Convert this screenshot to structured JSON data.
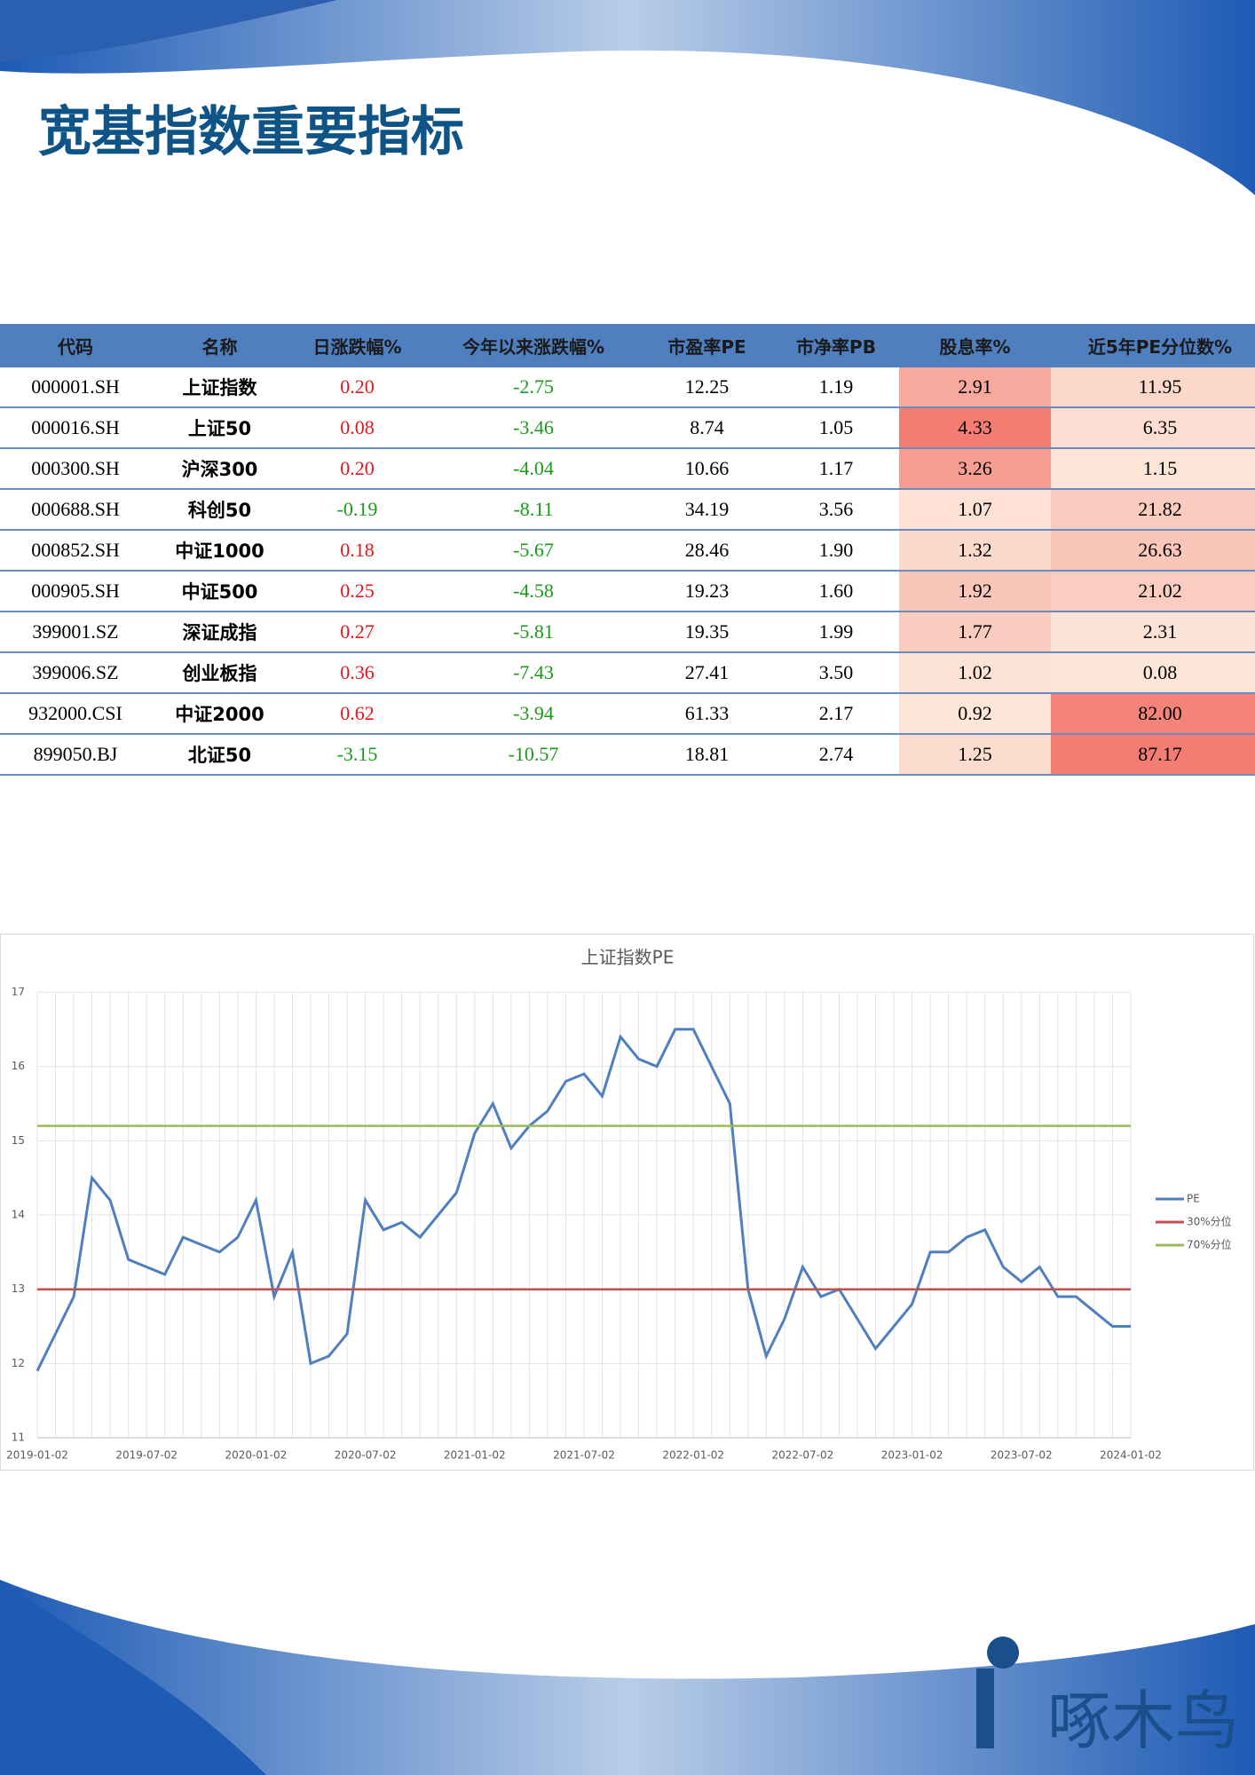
{
  "header": {
    "title": "宽基指数重要指标"
  },
  "table": {
    "columns": [
      "代码",
      "名称",
      "日涨跌幅%",
      "今年以来涨跌幅%",
      "市盈率PE",
      "市净率PB",
      "股息率%",
      "近5年PE分位数%"
    ],
    "rows": [
      [
        "000001.SH",
        "上证指数",
        "0.20",
        "-2.75",
        "12.25",
        "1.19",
        "2.91",
        "11.95"
      ],
      [
        "000016.SH",
        "上证50",
        "0.08",
        "-3.46",
        "8.74",
        "1.05",
        "4.33",
        "6.35"
      ],
      [
        "000300.SH",
        "沪深300",
        "0.20",
        "-4.04",
        "10.66",
        "1.17",
        "3.26",
        "1.15"
      ],
      [
        "000688.SH",
        "科创50",
        "-0.19",
        "-8.11",
        "34.19",
        "3.56",
        "1.07",
        "21.82"
      ],
      [
        "000852.SH",
        "中证1000",
        "0.18",
        "-5.67",
        "28.46",
        "1.90",
        "1.32",
        "26.63"
      ],
      [
        "000905.SH",
        "中证500",
        "0.25",
        "-4.58",
        "19.23",
        "1.60",
        "1.92",
        "21.02"
      ],
      [
        "399001.SZ",
        "深证成指",
        "0.27",
        "-5.81",
        "19.35",
        "1.99",
        "1.77",
        "2.31"
      ],
      [
        "399006.SZ",
        "创业板指",
        "0.36",
        "-7.43",
        "27.41",
        "3.50",
        "1.02",
        "0.08"
      ],
      [
        "932000.CSI",
        "中证2000",
        "0.62",
        "-3.94",
        "61.33",
        "2.17",
        "0.92",
        "82.00"
      ],
      [
        "899050.BJ",
        "北证50",
        "-3.15",
        "-10.57",
        "18.81",
        "2.74",
        "1.25",
        "87.17"
      ]
    ]
  },
  "chart_data": {
    "type": "line",
    "title": "上证指数PE",
    "categories": [
      "2019-01-02",
      null,
      null,
      null,
      null,
      null,
      "2019-07-02",
      null,
      null,
      null,
      null,
      null,
      "2020-01-02",
      null,
      null,
      null,
      null,
      null,
      "2020-07-02",
      null,
      null,
      null,
      null,
      null,
      "2021-01-02",
      null,
      null,
      null,
      null,
      null,
      "2021-07-02",
      null,
      null,
      null,
      null,
      null,
      "2022-01-02",
      null,
      null,
      null,
      null,
      null,
      "2022-07-02",
      null,
      null,
      null,
      null,
      null,
      "2023-01-02",
      null,
      null,
      null,
      null,
      null,
      "2023-07-02",
      null,
      null,
      null,
      null,
      null,
      "2024-01-02"
    ],
    "series": [
      {
        "name": "PE",
        "color": "#4f7fbf",
        "values": [
          11.9,
          12.4,
          12.9,
          14.5,
          14.2,
          13.4,
          13.3,
          13.2,
          13.7,
          13.6,
          13.5,
          13.7,
          14.2,
          12.9,
          13.5,
          12.0,
          12.1,
          12.4,
          14.2,
          13.8,
          13.9,
          13.7,
          14.0,
          14.3,
          15.1,
          15.5,
          14.9,
          15.2,
          15.4,
          15.8,
          15.9,
          15.6,
          16.4,
          16.1,
          16.0,
          16.5,
          16.5,
          16.0,
          15.5,
          13.0,
          12.1,
          12.6,
          13.3,
          12.9,
          13.0,
          12.6,
          12.2,
          12.5,
          12.8,
          13.5,
          13.5,
          13.7,
          13.8,
          13.3,
          13.1,
          13.3,
          12.9,
          12.9,
          12.7,
          12.5,
          12.5
        ]
      },
      {
        "name": "30%分位",
        "color": "#c0504d",
        "values": [
          13,
          13,
          13,
          13,
          13,
          13,
          13,
          13,
          13,
          13,
          13,
          13,
          13,
          13,
          13,
          13,
          13,
          13,
          13,
          13,
          13,
          13,
          13,
          13,
          13,
          13,
          13,
          13,
          13,
          13,
          13,
          13,
          13,
          13,
          13,
          13,
          13,
          13,
          13,
          13,
          13,
          13,
          13,
          13,
          13,
          13,
          13,
          13,
          13,
          13,
          13,
          13,
          13,
          13,
          13,
          13,
          13,
          13,
          13,
          13,
          13
        ]
      },
      {
        "name": "70%分位",
        "color": "#9bbb59",
        "values": [
          15.2,
          15.2,
          15.2,
          15.2,
          15.2,
          15.2,
          15.2,
          15.2,
          15.2,
          15.2,
          15.2,
          15.2,
          15.2,
          15.2,
          15.2,
          15.2,
          15.2,
          15.2,
          15.2,
          15.2,
          15.2,
          15.2,
          15.2,
          15.2,
          15.2,
          15.2,
          15.2,
          15.2,
          15.2,
          15.2,
          15.2,
          15.2,
          15.2,
          15.2,
          15.2,
          15.2,
          15.2,
          15.2,
          15.2,
          15.2,
          15.2,
          15.2,
          15.2,
          15.2,
          15.2,
          15.2,
          15.2,
          15.2,
          15.2,
          15.2,
          15.2,
          15.2,
          15.2,
          15.2,
          15.2,
          15.2,
          15.2,
          15.2,
          15.2,
          15.2,
          15.2
        ]
      }
    ],
    "ylim": [
      11,
      17
    ],
    "yticks": [
      11,
      12,
      13,
      14,
      15,
      16,
      17
    ],
    "grid": true,
    "legend": "right"
  },
  "logo": {
    "text": "啄木鸟"
  }
}
